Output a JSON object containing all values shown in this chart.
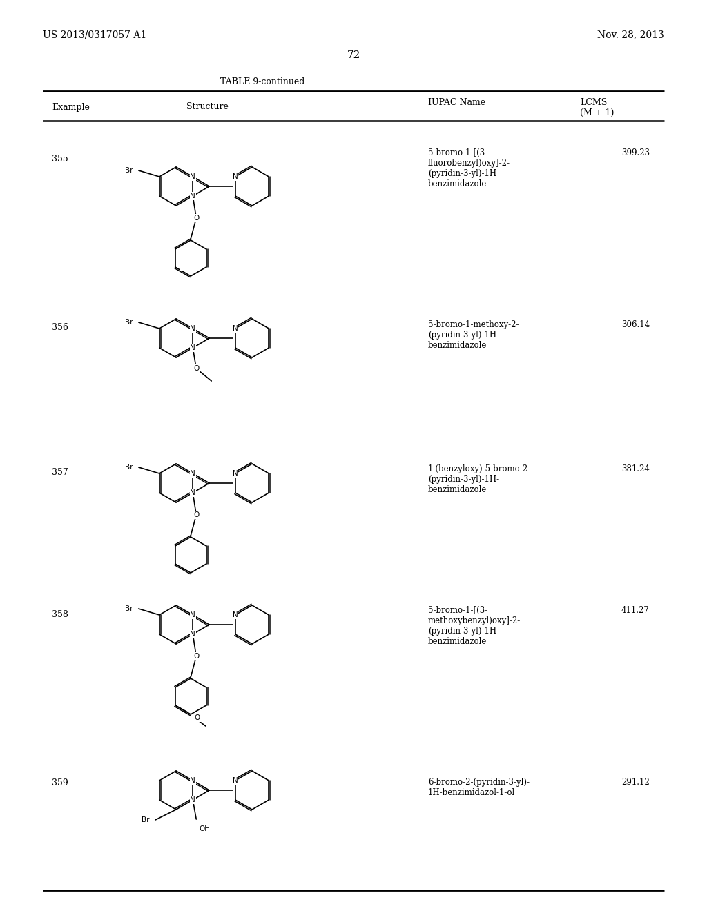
{
  "patent_number": "US 2013/0317057 A1",
  "date": "Nov. 28, 2013",
  "page_number": "72",
  "table_title": "TABLE 9-continued",
  "bg_color": "#ffffff",
  "text_color": "#000000",
  "rows": [
    {
      "example": "355",
      "iupac": "5-bromo-1-[(3-\nfluorobenzyl)oxy]-2-\n(pyridin-3-yl)-1H\nbenzimidazole",
      "lcms": "399.23"
    },
    {
      "example": "356",
      "iupac": "5-bromo-1-methoxy-2-\n(pyridin-3-yl)-1H-\nbenzimidazole",
      "lcms": "306.14"
    },
    {
      "example": "357",
      "iupac": "1-(benzyloxy)-5-bromo-2-\n(pyridin-3-yl)-1H-\nbenzimidazole",
      "lcms": "381.24"
    },
    {
      "example": "358",
      "iupac": "5-bromo-1-[(3-\nmethoxybenzyl)oxy]-2-\n(pyridin-3-yl)-1H-\nbenzimidazole",
      "lcms": "411.27"
    },
    {
      "example": "359",
      "iupac": "6-bromo-2-(pyridin-3-yl)-\n1H-benzimidazol-1-ol",
      "lcms": "291.12"
    }
  ]
}
